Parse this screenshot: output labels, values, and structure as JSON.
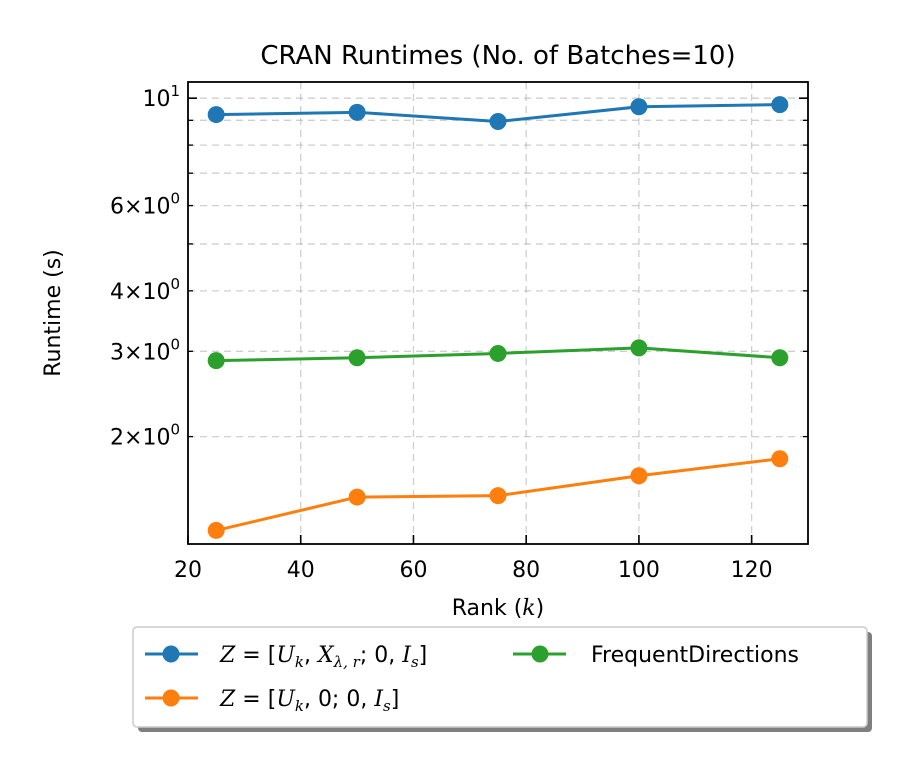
{
  "chart_data": {
    "type": "line",
    "title": "CRAN Runtimes (No. of Batches=10)",
    "xlabel": "Rank (k)",
    "ylabel": "Runtime (s)",
    "xlim": [
      20,
      130
    ],
    "ylim": [
      1.2,
      10.8
    ],
    "yscale": "log",
    "grid": true,
    "legend_position": "below",
    "x": [
      25,
      50,
      75,
      100,
      125
    ],
    "x_ticks": [
      20,
      40,
      60,
      80,
      100,
      120
    ],
    "y_ticks": [
      {
        "value": 2,
        "coef": "2",
        "exp": "0"
      },
      {
        "value": 3,
        "coef": "3",
        "exp": "0"
      },
      {
        "value": 4,
        "coef": "4",
        "exp": "0"
      },
      {
        "value": 6,
        "coef": "6",
        "exp": "0"
      },
      {
        "value": 10,
        "coef": "",
        "exp": "1"
      }
    ],
    "series": [
      {
        "name": "Z = [U_k, X_λ,r; 0, I_s]",
        "color": "#1f77b4",
        "values": [
          9.25,
          9.35,
          8.95,
          9.6,
          9.7
        ]
      },
      {
        "name": "Z = [U_k, 0; 0, I_s]",
        "color": "#ff7f0e",
        "values": [
          1.28,
          1.5,
          1.51,
          1.66,
          1.8
        ]
      },
      {
        "name": "FrequentDirections",
        "color": "#2ca02c",
        "values": [
          2.87,
          2.91,
          2.97,
          3.05,
          2.91
        ]
      }
    ]
  }
}
